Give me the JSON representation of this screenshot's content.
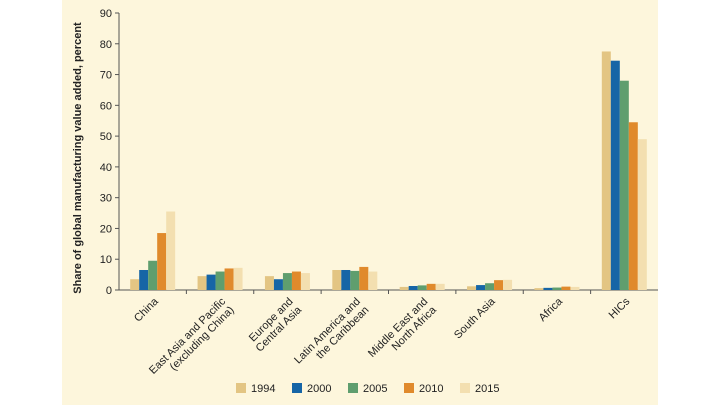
{
  "chart_data": {
    "type": "bar",
    "ylabel": "Share of global manufacturing value added, percent",
    "ylim": [
      0,
      90
    ],
    "yticks": [
      0,
      10,
      20,
      30,
      40,
      50,
      60,
      70,
      80,
      90
    ],
    "grid": false,
    "legend_position": "bottom",
    "categories": [
      [
        "China"
      ],
      [
        "East Asia and Pacific",
        "(excluding China)"
      ],
      [
        "Europe and",
        "Central Asia"
      ],
      [
        "Latin America and",
        "the Caribbean"
      ],
      [
        "Middle East and",
        "North Africa"
      ],
      [
        "South Asia"
      ],
      [
        "Africa"
      ],
      [
        "HICs"
      ]
    ],
    "series": [
      {
        "name": "1994",
        "color": "#e3c583",
        "values": [
          3.5,
          4.5,
          4.5,
          6.5,
          1.0,
          1.2,
          0.6,
          77.5
        ]
      },
      {
        "name": "2000",
        "color": "#1665a6",
        "values": [
          6.5,
          5.0,
          3.5,
          6.5,
          1.3,
          1.6,
          0.7,
          74.5
        ]
      },
      {
        "name": "2005",
        "color": "#5f9e6e",
        "values": [
          9.5,
          6.0,
          5.5,
          6.2,
          1.5,
          2.2,
          0.8,
          68.0
        ]
      },
      {
        "name": "2010",
        "color": "#e08a2c",
        "values": [
          18.5,
          7.0,
          6.0,
          7.5,
          2.0,
          3.2,
          1.1,
          54.5
        ]
      },
      {
        "name": "2015",
        "color": "#f3dfb0",
        "values": [
          25.5,
          7.2,
          5.5,
          6.0,
          2.0,
          3.3,
          1.0,
          49.0
        ]
      }
    ]
  }
}
